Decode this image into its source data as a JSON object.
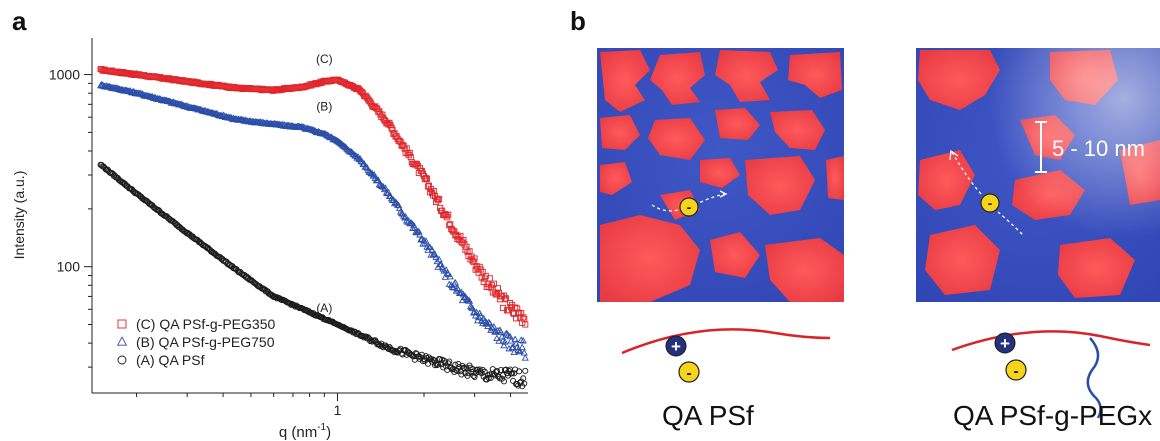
{
  "panel_a_label": "a",
  "panel_b_label": "b",
  "chart_data": {
    "type": "scatter",
    "xlabel": "q (nm",
    "xlabel_sup": "-1",
    "xlabel_close": ")",
    "ylabel": "Intensity (a.u.)",
    "xscale": "log",
    "yscale": "log",
    "xlim": [
      0.14,
      4.6
    ],
    "ylim": [
      22,
      1550
    ],
    "xticks": [
      {
        "value": 1,
        "label": "1"
      }
    ],
    "yticks": [
      {
        "value": 100,
        "label": "100"
      },
      {
        "value": 1000,
        "label": "1000"
      }
    ],
    "legend_position": "bottom-left",
    "series": [
      {
        "name": "(C) QA PSf-g-PEG350",
        "annotation": "(C)",
        "marker": "square",
        "color": "#e0262b",
        "x": [
          0.15,
          0.2,
          0.3,
          0.45,
          0.6,
          0.75,
          0.9,
          1.0,
          1.2,
          1.5,
          2.0,
          2.5,
          3.0,
          3.5,
          4.0,
          4.5
        ],
        "y": [
          1060,
          1000,
          920,
          850,
          830,
          860,
          920,
          940,
          830,
          560,
          290,
          165,
          105,
          75,
          60,
          55
        ]
      },
      {
        "name": "(B) QA PSf-g-PEG750",
        "annotation": "(B)",
        "marker": "triangle",
        "color": "#2b4ea8",
        "x": [
          0.15,
          0.2,
          0.3,
          0.45,
          0.6,
          0.75,
          0.9,
          1.0,
          1.2,
          1.5,
          2.0,
          2.5,
          3.0,
          3.5,
          4.0,
          4.5
        ],
        "y": [
          880,
          800,
          680,
          580,
          550,
          530,
          490,
          450,
          360,
          240,
          135,
          82,
          58,
          46,
          40,
          37
        ]
      },
      {
        "name": "(A) QA PSf",
        "annotation": "(A)",
        "marker": "circle",
        "color": "#1a1a1a",
        "x": [
          0.15,
          0.2,
          0.3,
          0.45,
          0.6,
          0.8,
          1.0,
          1.2,
          1.5,
          2.0,
          2.5,
          3.0,
          3.5,
          4.0,
          4.5
        ],
        "y": [
          340,
          240,
          150,
          95,
          70,
          58,
          50,
          44,
          38,
          33,
          30,
          28,
          27,
          27,
          26
        ]
      }
    ]
  },
  "panel_b": {
    "scale_label": "5 - 10 nm",
    "ion_minus": "-",
    "ion_plus": "+",
    "caption_left": "QA PSf",
    "caption_right": "QA PSf-g-PEGx"
  }
}
